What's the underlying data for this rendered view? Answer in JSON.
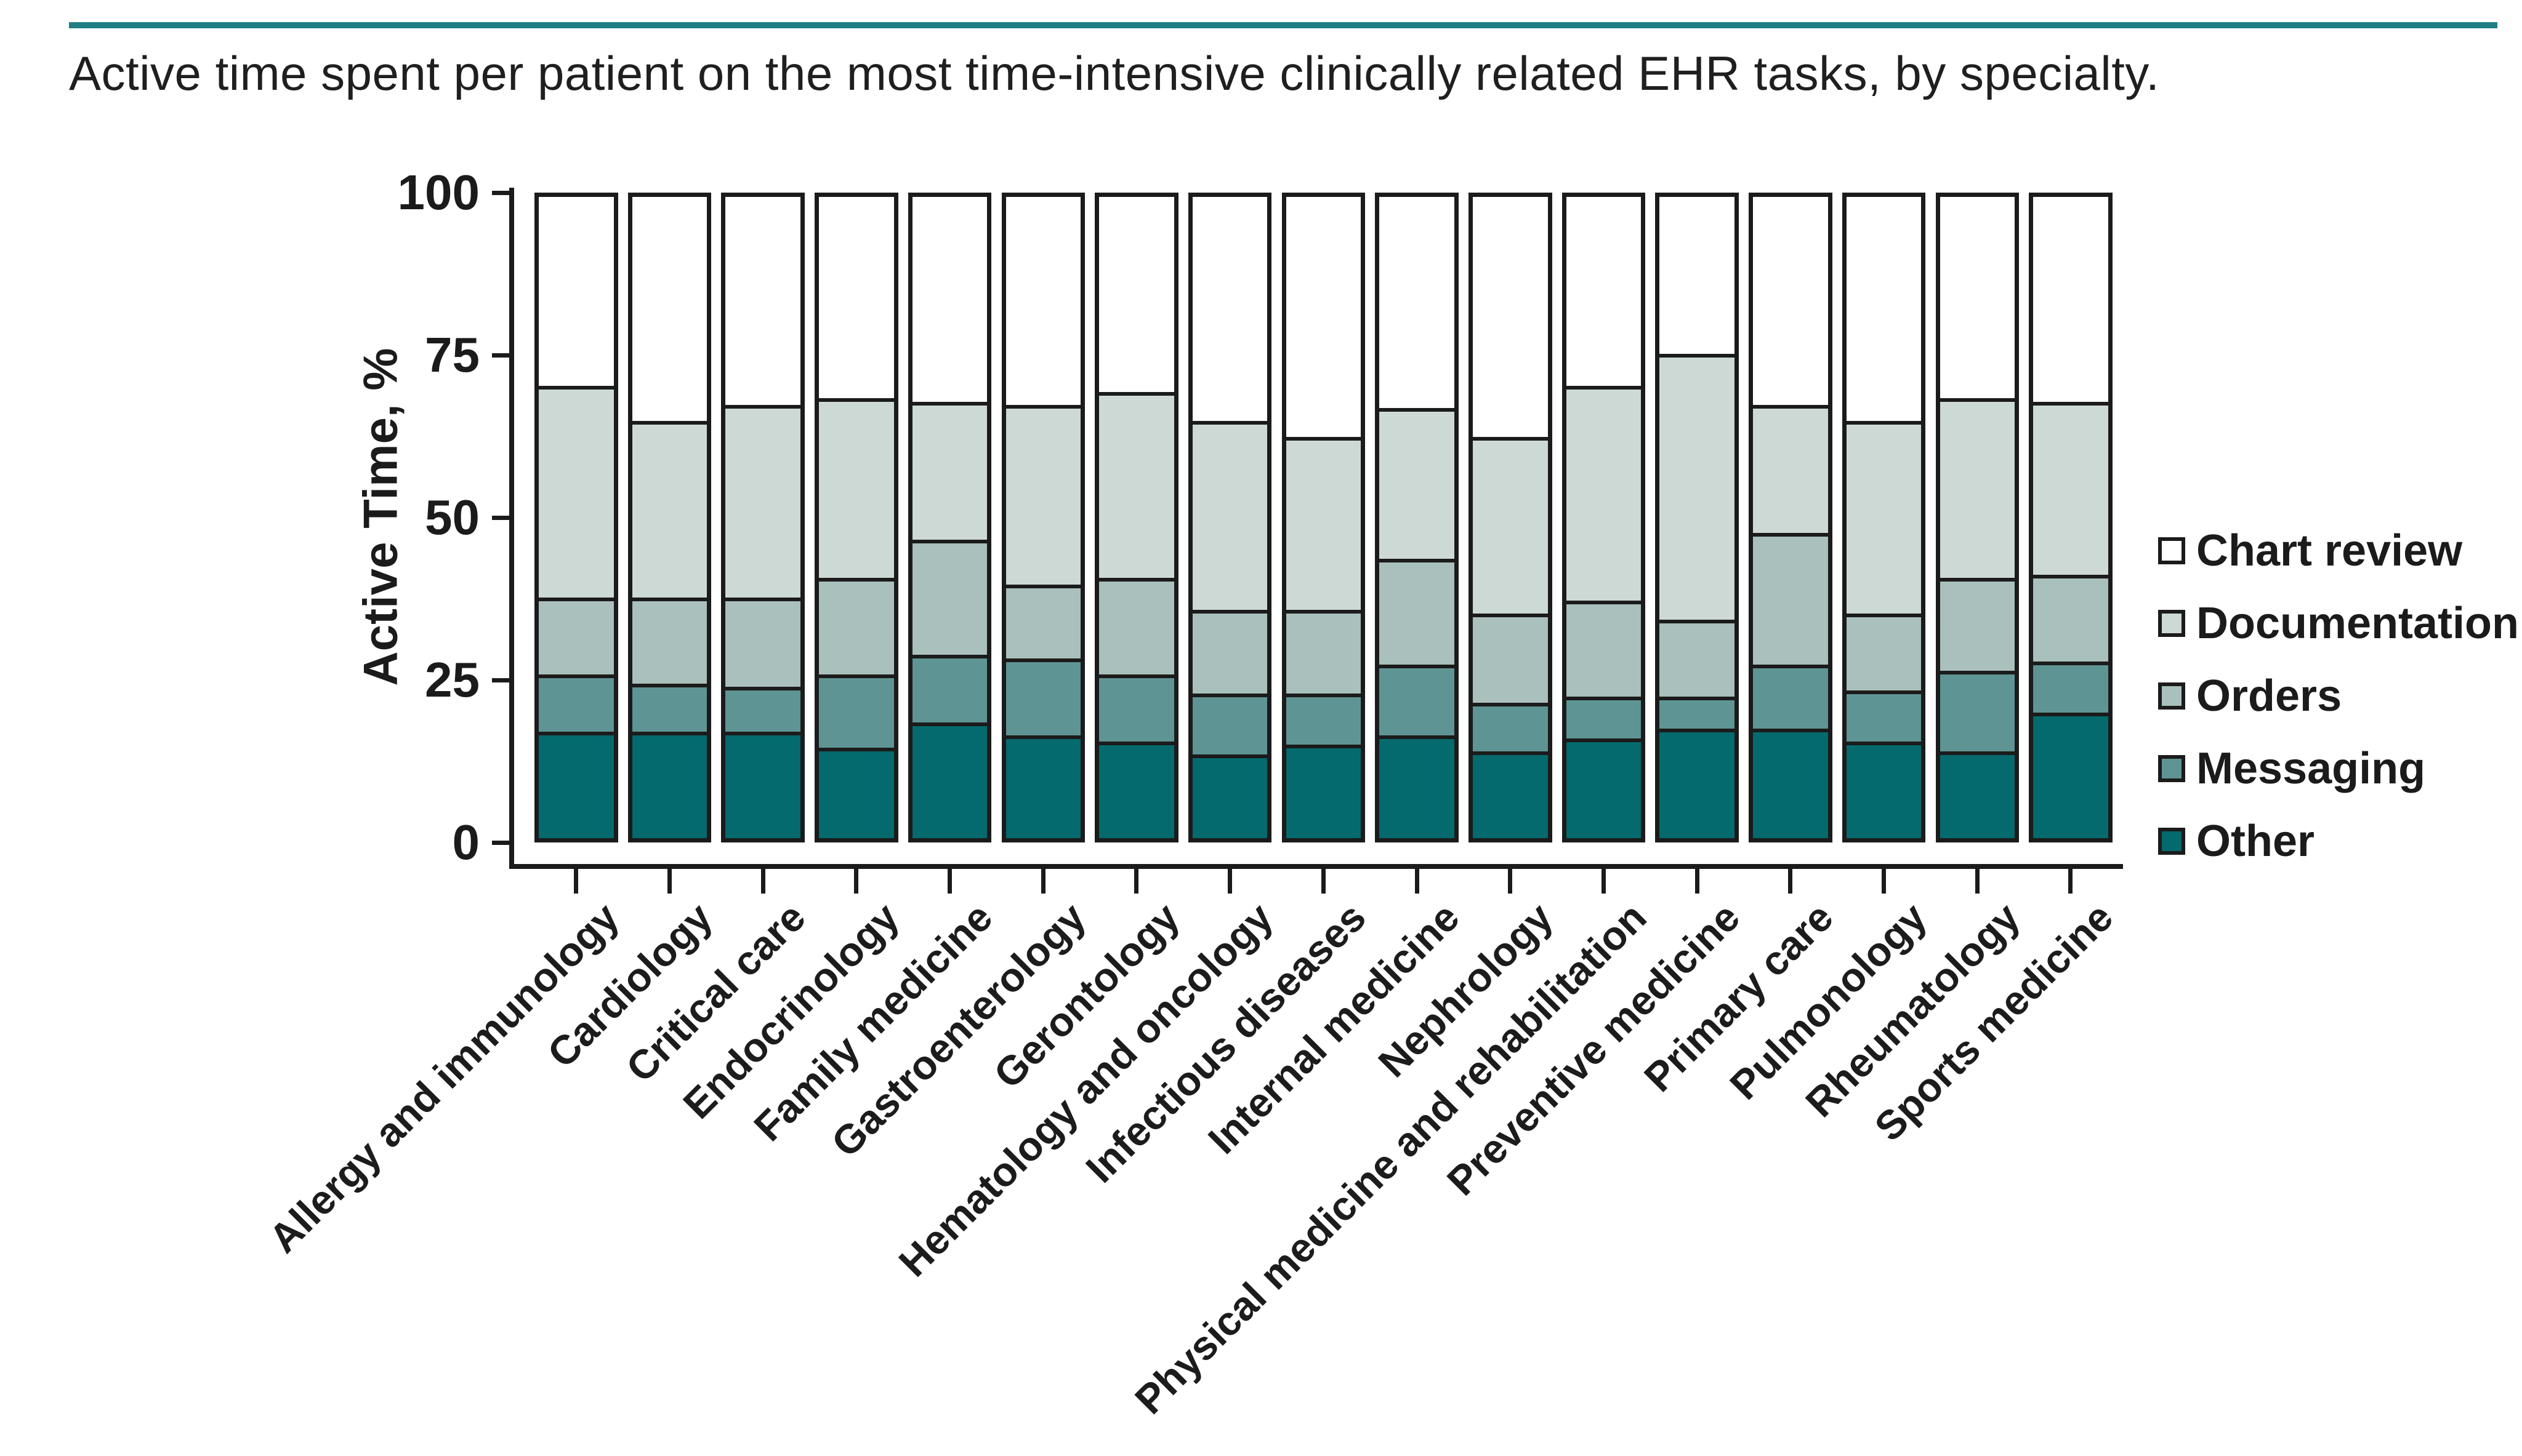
{
  "page": {
    "accent_color": "#1f7e82",
    "ink_color": "#1b1b1b"
  },
  "chart_data": {
    "type": "bar",
    "subtype": "stacked-100-percent",
    "title": "Active time spent per patient on the most time-intensive clinically related EHR tasks, by specialty.",
    "ylabel": "Active Time, %",
    "xlabel": "",
    "ylim": [
      0,
      100
    ],
    "yticks": [
      0,
      25,
      50,
      75,
      100
    ],
    "grid": false,
    "legend_position": "right",
    "legend_order": [
      "Chart review",
      "Documentation",
      "Orders",
      "Messaging",
      "Other"
    ],
    "categories": [
      "Allergy and immunology",
      "Cardiology",
      "Critical care",
      "Endocrinology",
      "Family medicine",
      "Gastroenterology",
      "Gerontology",
      "Hematology and oncology",
      "Infectious diseases",
      "Internal medicine",
      "Nephrology",
      "Physical medicine and rehabilitation",
      "Preventive medicine",
      "Primary care",
      "Pulmonology",
      "Rheumatology",
      "Sports medicine"
    ],
    "series": [
      {
        "name": "Other",
        "color": "#046a6e",
        "values": [
          16,
          16,
          16,
          13.5,
          17.5,
          15.5,
          14.5,
          12.5,
          14,
          15.5,
          13,
          15,
          16.5,
          16.5,
          14.5,
          13,
          19
        ]
      },
      {
        "name": "Messaging",
        "color": "#5f9494",
        "values": [
          9,
          7.5,
          7,
          11.5,
          10.5,
          12,
          10.5,
          9.5,
          8,
          11,
          7.5,
          6.5,
          5,
          10,
          8,
          12.5,
          8
        ]
      },
      {
        "name": "Orders",
        "color": "#a9c0bc",
        "values": [
          12,
          13.5,
          14,
          15,
          18,
          11.5,
          15,
          13,
          13,
          16.5,
          14,
          15,
          12,
          20.5,
          12,
          14.5,
          13.5
        ]
      },
      {
        "name": "Documentation",
        "color": "#cdd9d5",
        "values": [
          33,
          27.5,
          30,
          28,
          21.5,
          28,
          29,
          29.5,
          27,
          23.5,
          27.5,
          33.5,
          41.5,
          20,
          30,
          28,
          27
        ]
      },
      {
        "name": "Chart review",
        "color": "#ffffff",
        "values": [
          30,
          35.5,
          33,
          32,
          32.5,
          33,
          31,
          35.5,
          38,
          33.5,
          38,
          30,
          25,
          33,
          35.5,
          32,
          32.5
        ]
      }
    ]
  }
}
